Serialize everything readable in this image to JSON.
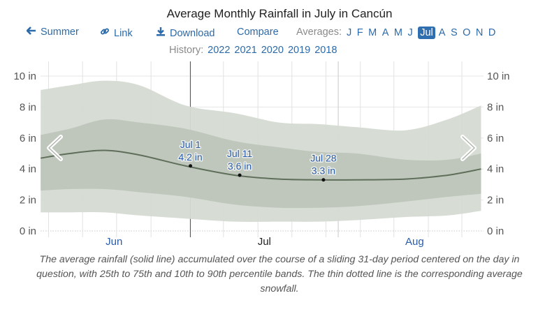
{
  "title": "Average Monthly Rainfall in July in Cancún",
  "toolbar": {
    "back_label": "Summer",
    "back_icon": "arrow-left-icon",
    "link_label": "Link",
    "link_icon": "link-icon",
    "download_label": "Download",
    "download_icon": "download-icon",
    "compare_label": "Compare",
    "averages_label": "Averages:",
    "months": [
      "J",
      "F",
      "M",
      "A",
      "M",
      "J",
      "Jul",
      "A",
      "S",
      "O",
      "N",
      "D"
    ],
    "selected_month_index": 6
  },
  "history": {
    "label": "History:",
    "years": [
      "2022",
      "2021",
      "2020",
      "2019",
      "2018"
    ]
  },
  "colors": {
    "link": "#2c6aa8",
    "selected_month_bg": "#2f6fb0",
    "band_outer": "#d5dbd3",
    "band_inner": "#bec5bb",
    "mean_line": "#5f6e5a",
    "annotation_text": "#2a5ca8"
  },
  "chart_data": {
    "type": "area",
    "title": "Average Monthly Rainfall in July in Cancún",
    "xlabel": "",
    "ylabel": "",
    "y_unit": "in",
    "ylim": [
      0,
      10
    ],
    "yticks": [
      0,
      2,
      4,
      6,
      8,
      10
    ],
    "ytick_labels": [
      "0 in",
      "2 in",
      "4 in",
      "6 in",
      "8 in",
      "10 in"
    ],
    "x_unit": "day offset from May 31 (Jun 1 = 1)",
    "xlim": [
      0.6,
      90
    ],
    "month_labels": [
      {
        "label": "Jun",
        "day": 15.5,
        "highlight": false
      },
      {
        "label": "Jul",
        "day": 46,
        "highlight": true
      },
      {
        "label": "Aug",
        "day": 76.5,
        "highlight": false
      }
    ],
    "month_boundaries": [
      31,
      61
    ],
    "grid": true,
    "x": [
      0.6,
      6.5,
      13.6,
      20.7,
      30,
      40,
      49,
      57,
      64.8,
      74.7,
      83.2,
      90
    ],
    "series": [
      {
        "name": "10th percentile",
        "values": [
          1.2,
          1.2,
          1.2,
          1.0,
          0.8,
          0.6,
          0.6,
          0.6,
          0.7,
          0.9,
          1.0,
          1.3
        ]
      },
      {
        "name": "25th percentile",
        "values": [
          2.6,
          2.7,
          2.7,
          2.5,
          2.2,
          1.7,
          1.5,
          1.5,
          1.6,
          1.9,
          2.2,
          2.4
        ]
      },
      {
        "name": "Average rainfall",
        "values": [
          4.7,
          5.0,
          5.2,
          4.9,
          4.2,
          3.6,
          3.35,
          3.3,
          3.3,
          3.35,
          3.6,
          4.0
        ]
      },
      {
        "name": "75th percentile",
        "values": [
          6.2,
          6.6,
          7.2,
          7.0,
          6.6,
          5.8,
          5.4,
          5.1,
          5.0,
          4.6,
          4.6,
          5.0
        ]
      },
      {
        "name": "90th percentile",
        "values": [
          9.1,
          9.4,
          9.7,
          9.4,
          8.1,
          7.6,
          7.0,
          6.9,
          6.7,
          6.5,
          7.2,
          8.1
        ]
      },
      {
        "name": "Average snowfall",
        "values": [
          0,
          0,
          0,
          0,
          0,
          0,
          0,
          0,
          0,
          0,
          0,
          0
        ]
      }
    ],
    "annotations": [
      {
        "label": "Jul 1",
        "value_label": "4.2 in",
        "day": 31,
        "value": 4.2
      },
      {
        "label": "Jul 11",
        "value_label": "3.6 in",
        "day": 41,
        "value": 3.6
      },
      {
        "label": "Jul 28",
        "value_label": "3.3 in",
        "day": 58,
        "value": 3.3
      }
    ]
  },
  "caption": "The average rainfall (solid line) accumulated over the course of a sliding 31-day period centered on the day in question, with 25th to 75th and 10th to 90th percentile bands. The thin dotted line is the corresponding average snowfall."
}
